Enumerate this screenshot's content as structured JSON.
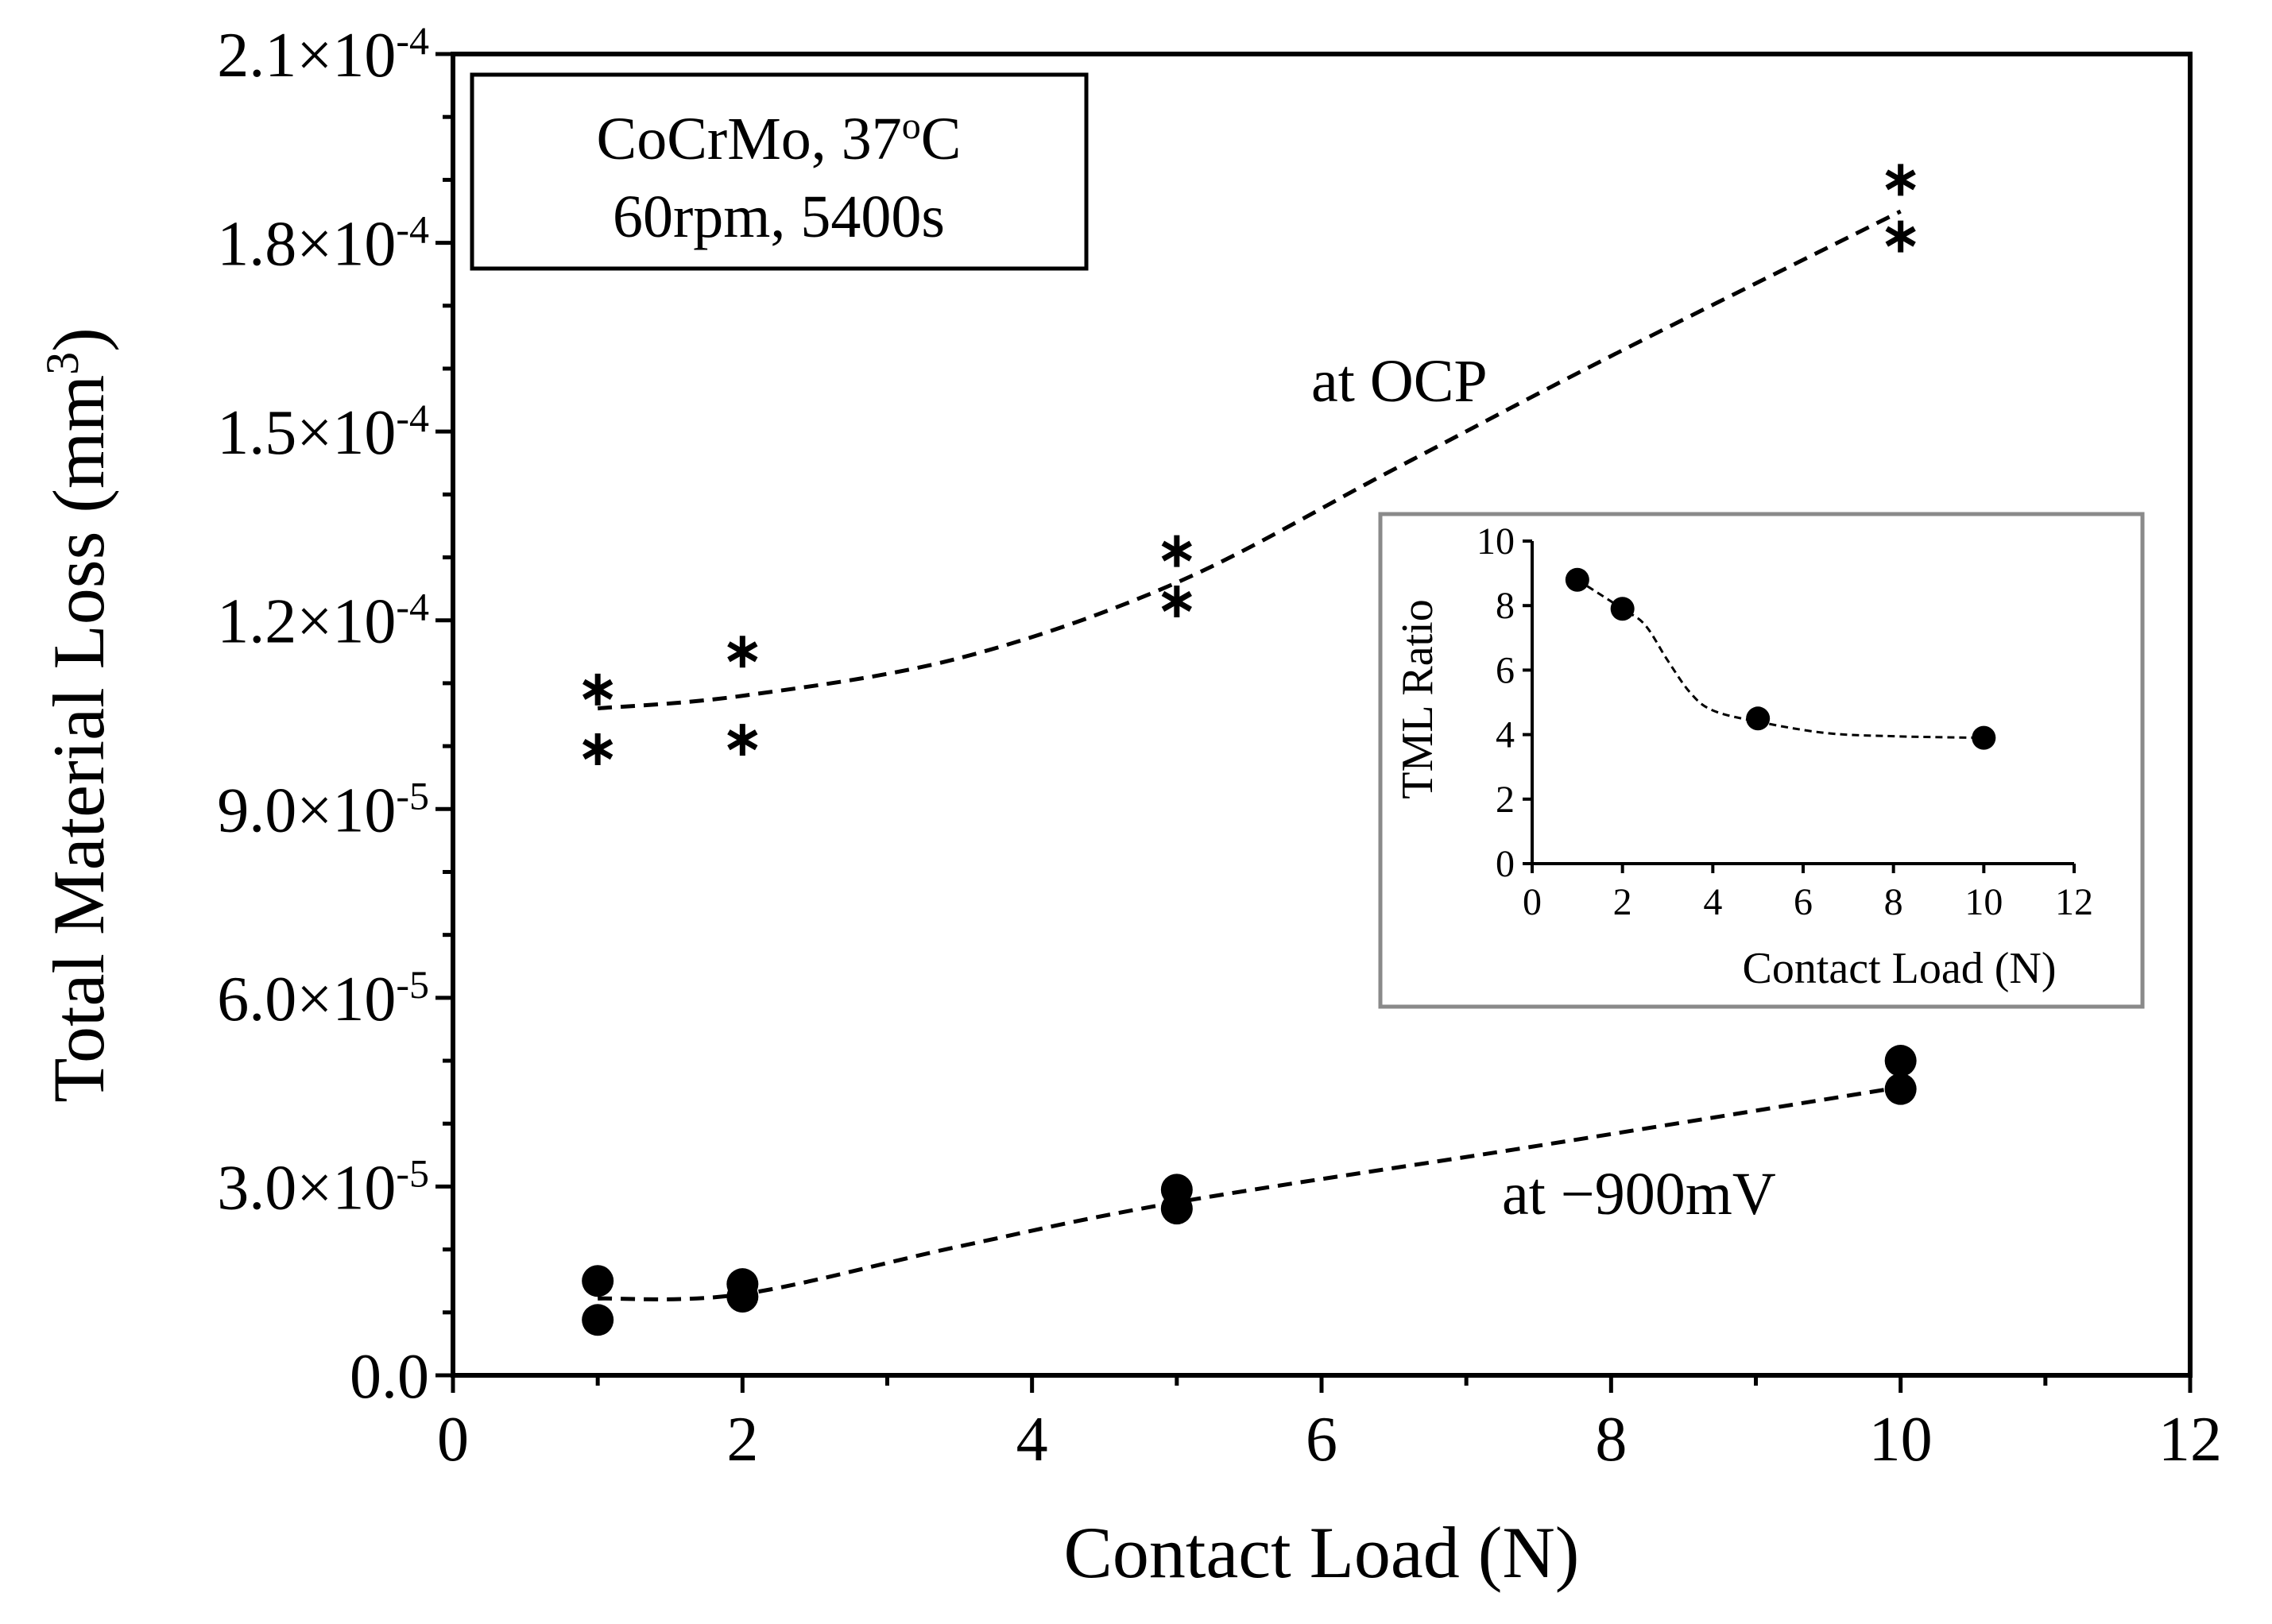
{
  "chart_data": [
    {
      "type": "scatter",
      "title": "",
      "xlabel": "Contact Load (N)",
      "ylabel_main": "Total Material Loss (mm",
      "ylabel_sup": "3",
      "ylabel_tail": ")",
      "xlim": [
        0,
        12
      ],
      "ylim": [
        0,
        0.00021
      ],
      "x_ticks": [
        {
          "value": 0,
          "label": "0"
        },
        {
          "value": 2,
          "label": "2"
        },
        {
          "value": 4,
          "label": "4"
        },
        {
          "value": 6,
          "label": "6"
        },
        {
          "value": 8,
          "label": "8"
        },
        {
          "value": 10,
          "label": "10"
        },
        {
          "value": 12,
          "label": "12"
        }
      ],
      "x_minor_step": 1,
      "y_ticks": [
        {
          "value": 0,
          "label": "0.0",
          "sup": ""
        },
        {
          "value": 3e-05,
          "label": "3.0×10",
          "sup": "-5"
        },
        {
          "value": 6e-05,
          "label": "6.0×10",
          "sup": "-5"
        },
        {
          "value": 9e-05,
          "label": "9.0×10",
          "sup": "-5"
        },
        {
          "value": 0.00012,
          "label": "1.2×10",
          "sup": "-4"
        },
        {
          "value": 0.00015,
          "label": "1.5×10",
          "sup": "-4"
        },
        {
          "value": 0.00018,
          "label": "1.8×10",
          "sup": "-4"
        },
        {
          "value": 0.00021,
          "label": "2.1×10",
          "sup": "-4"
        }
      ],
      "y_minor_step": 1e-05,
      "series": [
        {
          "name": "at OCP",
          "marker": "asterisk",
          "x": [
            1,
            1,
            2,
            2,
            5,
            5,
            10,
            10
          ],
          "y": [
            0.000109,
            9.95e-05,
            0.000115,
            0.000101,
            0.000131,
            0.000123,
            0.00019,
            0.000181
          ],
          "trend": [
            [
              1,
              0.000106
            ],
            [
              2,
              0.000108
            ],
            [
              3.5,
              0.000114
            ],
            [
              5,
              0.000126
            ],
            [
              6.5,
              0.000144
            ],
            [
              8,
              0.000162
            ],
            [
              10,
              0.000185
            ]
          ]
        },
        {
          "name": "at −900mV",
          "marker": "circle",
          "x": [
            1,
            1,
            2,
            2,
            5,
            5,
            10,
            10
          ],
          "y": [
            1.5e-05,
            8.8e-06,
            1.45e-05,
            1.25e-05,
            2.95e-05,
            2.65e-05,
            5e-05,
            4.55e-05
          ],
          "trend": [
            [
              1,
              1.22e-05
            ],
            [
              2,
              1.29e-05
            ],
            [
              3.5,
              2.05e-05
            ],
            [
              5,
              2.75e-05
            ],
            [
              7.5,
              3.65e-05
            ],
            [
              10,
              4.58e-05
            ]
          ]
        }
      ],
      "annotations": {
        "series_label_1": "at OCP",
        "series_label_2": "at −900mV",
        "info_line1_main": "CoCrMo, 37",
        "info_line1_sup": "o",
        "info_line1_tail": "C",
        "info_line2": "60rpm, 5400s"
      }
    },
    {
      "type": "scatter",
      "title": "",
      "xlabel": "Contact Load (N)",
      "ylabel": "TML Ratio",
      "xlim": [
        0,
        12
      ],
      "ylim": [
        0,
        10
      ],
      "x_ticks": [
        "0",
        "2",
        "4",
        "6",
        "8",
        "10",
        "12"
      ],
      "y_ticks": [
        "0",
        "2",
        "4",
        "6",
        "8",
        "10"
      ],
      "series": [
        {
          "name": "TML Ratio",
          "marker": "circle",
          "x": [
            1,
            2,
            5,
            10
          ],
          "y": [
            8.8,
            7.9,
            4.5,
            3.9
          ],
          "trend": [
            [
              1,
              8.8
            ],
            [
              2,
              7.9
            ],
            [
              2.5,
              7.4
            ],
            [
              3,
              6.3
            ],
            [
              3.5,
              5.3
            ],
            [
              4,
              4.75
            ],
            [
              5,
              4.4
            ],
            [
              6.5,
              4.05
            ],
            [
              8,
              3.95
            ],
            [
              10,
              3.9
            ]
          ]
        }
      ]
    }
  ]
}
